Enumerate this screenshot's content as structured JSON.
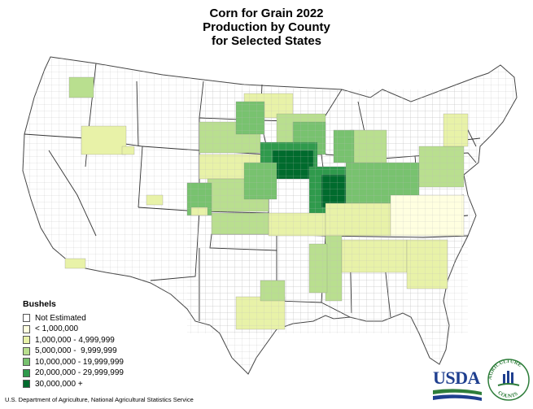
{
  "title": {
    "line1": "Corn for Grain 2022",
    "line2": "Production by County",
    "line3": "for Selected States"
  },
  "legend": {
    "heading": "Bushels",
    "items": [
      {
        "label": "Not Estimated",
        "color": "#ffffff"
      },
      {
        "label": "< 1,000,000",
        "color": "#ffffe0"
      },
      {
        "label": "1,000,000 - 4,999,999",
        "color": "#e8f2a8"
      },
      {
        "label": "5,000,000 -  9,999,999",
        "color": "#b9df8f"
      },
      {
        "label": "10,000,000 - 19,999,999",
        "color": "#78c26f"
      },
      {
        "label": "20,000,000 - 29,999,999",
        "color": "#2f9a4c"
      },
      {
        "label": "30,000,000 +",
        "color": "#006b2d"
      }
    ]
  },
  "credit": "U.S. Department of Agriculture, National Agricultural Statistics Service",
  "logo": {
    "text": "USDA",
    "seal_top": "AGRICULTURE",
    "seal_bottom": "COUNTS",
    "brand_blue": "#1f3f8f",
    "brand_green": "#2e7d3a"
  }
}
